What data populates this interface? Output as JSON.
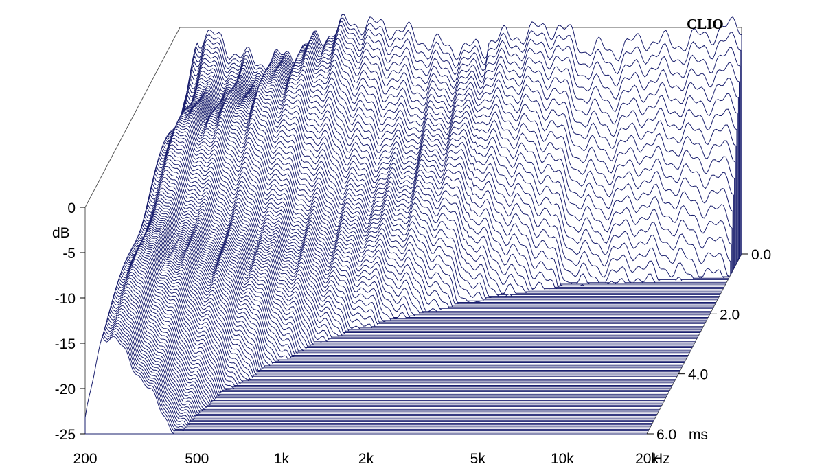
{
  "chart_data": {
    "type": "waterfall",
    "brand": "CLIO",
    "x_axis": {
      "scale": "log",
      "unit": "Hz",
      "ticks": [
        {
          "value": 200,
          "label": "200"
        },
        {
          "value": 500,
          "label": "500"
        },
        {
          "value": 1000,
          "label": "1k"
        },
        {
          "value": 2000,
          "label": "2k"
        },
        {
          "value": 5000,
          "label": "5k"
        },
        {
          "value": 10000,
          "label": "10k"
        },
        {
          "value": 20000,
          "label": "20k"
        }
      ],
      "range": [
        200,
        20000
      ]
    },
    "y_axis": {
      "unit": "dB",
      "range": [
        -25,
        0
      ],
      "ticks": [
        {
          "value": 0,
          "label": "0"
        },
        {
          "value": -5,
          "label": "-5"
        },
        {
          "value": -10,
          "label": "-10"
        },
        {
          "value": -15,
          "label": "-15"
        },
        {
          "value": -20,
          "label": "-20"
        },
        {
          "value": -25,
          "label": "-25"
        }
      ]
    },
    "z_axis": {
      "unit": "ms",
      "range": [
        0,
        6
      ],
      "ticks": [
        {
          "value": 0,
          "label": "0.0"
        },
        {
          "value": 2,
          "label": "2.0"
        },
        {
          "value": 4,
          "label": "4.0"
        },
        {
          "value": 6,
          "label": "6.0"
        }
      ]
    },
    "series_color": "#1a1f6e",
    "slice_count": 120,
    "initial_response_db": [
      {
        "hz": 200,
        "db": -14
      },
      {
        "hz": 230,
        "db": -2.5
      },
      {
        "hz": 260,
        "db": -1.5
      },
      {
        "hz": 350,
        "db": -1.8
      },
      {
        "hz": 500,
        "db": -1.2
      },
      {
        "hz": 800,
        "db": -1.5
      },
      {
        "hz": 1000,
        "db": -2.0
      },
      {
        "hz": 1400,
        "db": -1.0
      },
      {
        "hz": 2000,
        "db": 0.0
      },
      {
        "hz": 3000,
        "db": -1.0
      },
      {
        "hz": 4500,
        "db": -0.8
      },
      {
        "hz": 5500,
        "db": -3.0
      },
      {
        "hz": 7000,
        "db": -2.5
      },
      {
        "hz": 9000,
        "db": -0.5
      },
      {
        "hz": 12000,
        "db": -1.0
      },
      {
        "hz": 15000,
        "db": -0.7
      },
      {
        "hz": 20000,
        "db": -0.5
      }
    ]
  }
}
